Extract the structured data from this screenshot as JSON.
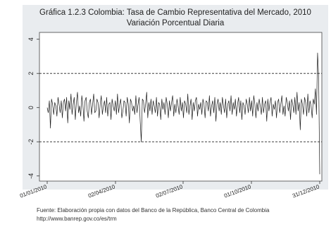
{
  "chart_data": {
    "type": "line",
    "title": "Gráfica 1.2.3 Colombia: Tasa de Cambio Representativa del Mercado, 2010",
    "subtitle": "Variación Porcentual Diaria",
    "xlabel": "",
    "ylabel": "",
    "x_range": [
      "01/01/2010",
      "31/12/2010"
    ],
    "ylim": [
      -4.3,
      4.4
    ],
    "y_ticks": [
      "4",
      "2",
      "0",
      "-2",
      "-4"
    ],
    "x_tick_labels": [
      "01/01/2010",
      "02/04/2010",
      "02/07/2010",
      "01/10/2010",
      "31/12/2010"
    ],
    "reference_lines": [
      2,
      -2
    ],
    "grid": false,
    "series": [
      {
        "values": [
          0.0,
          -0.3,
          0.4,
          -1.2,
          0.5,
          0.2,
          -0.4,
          0.3,
          0.1,
          -0.5,
          0.6,
          0.2,
          -0.3,
          0.4,
          -0.6,
          0.3,
          0.5,
          -0.2,
          0.6,
          -0.9,
          0.4,
          -0.1,
          0.8,
          -0.4,
          0.2,
          0.6,
          -0.7,
          0.3,
          0.9,
          -0.3,
          0.1,
          -0.5,
          0.7,
          0.2,
          -0.8,
          0.4,
          0.6,
          -0.2,
          -0.6,
          0.3,
          0.5,
          -0.4,
          0.2,
          0.8,
          -0.3,
          -0.2,
          0.5,
          0.3,
          -0.6,
          0.2,
          0.7,
          -0.4,
          0.1,
          0.4,
          -0.3,
          0.6,
          -0.5,
          0.2,
          0.3,
          -0.7,
          0.5,
          0.1,
          -0.2,
          0.4,
          -0.4,
          0.8,
          -0.3,
          0.2,
          0.5,
          -0.6,
          -0.2,
          0.4,
          0.3,
          -0.5,
          0.6,
          0.2,
          -0.9,
          0.5,
          0.3,
          -0.2,
          0.1,
          -0.4,
          0.7,
          -0.3,
          0.2,
          0.6,
          -0.8,
          -2.0,
          0.5,
          0.4,
          -0.3,
          0.2,
          0.9,
          -0.6,
          0.3,
          -0.2,
          0.5,
          -0.4,
          0.4,
          0.1,
          -0.3,
          0.6,
          -0.5,
          0.3,
          0.2,
          -0.7,
          0.5,
          -0.1,
          0.3,
          -0.4,
          0.6,
          0.2,
          -0.6,
          0.4,
          -0.2,
          0.3,
          0.7,
          -0.5,
          0.2,
          -0.3,
          0.5,
          0.1,
          -0.4,
          0.6,
          -0.2,
          0.3,
          -0.6,
          0.4,
          0.2,
          -0.3,
          0.8,
          -0.4,
          0.1,
          0.5,
          -0.7,
          0.3,
          -0.2,
          0.4,
          0.6,
          -0.5,
          0.2,
          -0.1,
          0.3,
          -0.4,
          0.5,
          0.2,
          -0.6,
          0.4,
          0.3,
          -0.2,
          0.7,
          -0.5,
          0.1,
          0.4,
          -0.3,
          0.6,
          -0.8,
          0.2,
          0.5,
          -0.2,
          0.3,
          -0.4,
          0.6,
          0.1,
          -0.3,
          0.5,
          -0.6,
          0.2,
          0.4,
          -0.2,
          0.7,
          -0.4,
          0.3,
          -0.1,
          0.5,
          -0.5,
          0.2,
          0.6,
          -0.3,
          0.4,
          -0.7,
          0.3,
          0.1,
          -0.4,
          0.5,
          0.2,
          -0.3,
          0.6,
          -0.2,
          0.4,
          -0.5,
          0.7,
          0.2,
          -0.6,
          0.3,
          -0.2,
          0.5,
          0.1,
          -0.4,
          0.6,
          -0.3,
          0.2,
          0.4,
          -0.8,
          0.5,
          -0.2,
          0.3,
          0.6,
          -0.5,
          0.2,
          -0.1,
          0.4,
          -0.6,
          0.3,
          0.5,
          -0.3,
          0.2,
          0.7,
          -0.4,
          0.1,
          -0.5,
          0.6,
          0.3,
          -0.2,
          0.4,
          -0.7,
          0.5,
          0.2,
          -0.3,
          0.6,
          -0.4,
          0.9,
          -0.2,
          0.3,
          -1.3,
          0.5,
          0.2,
          -0.4,
          0.6,
          0.3,
          -0.5,
          0.8,
          -0.3,
          0.4,
          0.1,
          -0.6,
          0.5,
          0.2,
          1.1,
          -0.4,
          3.2,
          1.8,
          -3.9
        ]
      }
    ]
  },
  "footer": {
    "source_line": "Fuente: Elaboración propia con datos del Banco de la República, Banco Central de Colombia",
    "url_line": "http://www.banrep.gov.co/es/trm"
  },
  "colors": {
    "panel": "#e9ecef",
    "plot_background": "#ffffff",
    "line": "#1a1a1a",
    "reference_line": "#222222"
  }
}
